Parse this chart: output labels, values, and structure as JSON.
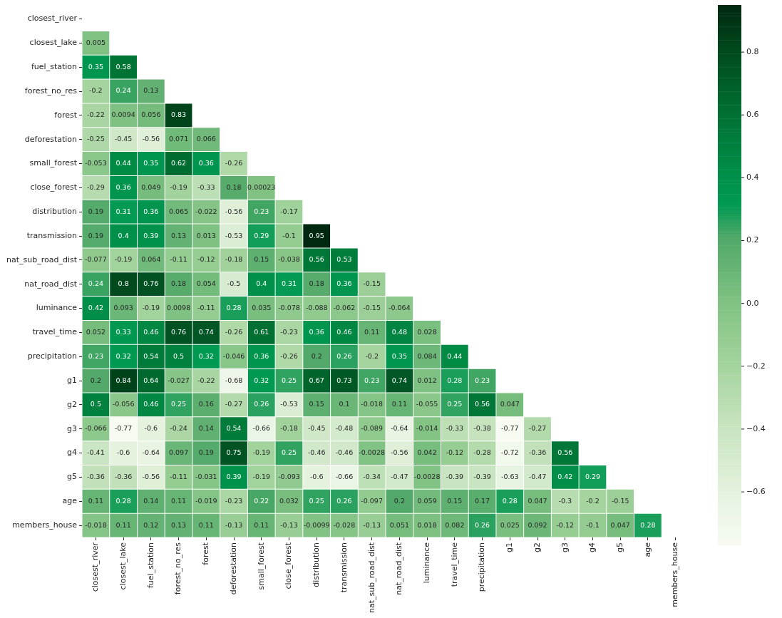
{
  "chart_data": {
    "type": "heatmap",
    "categories": [
      "closest_river",
      "closest_lake",
      "fuel_station",
      "forest_no_res",
      "forest",
      "deforestation",
      "small_forest",
      "close_forest",
      "distribution",
      "transmission",
      "nat_sub_road_dist",
      "nat_road_dist",
      "luminance",
      "travel_time",
      "precipitation",
      "g1",
      "g2",
      "g3",
      "g4",
      "g5",
      "age",
      "members_house"
    ],
    "y_categories": [
      "closest_river",
      "closest_lake",
      "fuel_station",
      "forest_no_res",
      "forest",
      "deforestation",
      "small_forest",
      "close_forest",
      "distribution",
      "transmission",
      "nat_sub_road_dist",
      "nat_road_dist",
      "luminance",
      "travel_time",
      "precipitation",
      "g1",
      "g2",
      "g3",
      "g4",
      "g5",
      "age",
      "members_house"
    ],
    "cells": [
      [
        null,
        null,
        null,
        null,
        null,
        null,
        null,
        null,
        null,
        null,
        null,
        null,
        null,
        null,
        null,
        null,
        null,
        null,
        null,
        null,
        null,
        null
      ],
      [
        0.005,
        null,
        null,
        null,
        null,
        null,
        null,
        null,
        null,
        null,
        null,
        null,
        null,
        null,
        null,
        null,
        null,
        null,
        null,
        null,
        null,
        null
      ],
      [
        0.35,
        0.58,
        null,
        null,
        null,
        null,
        null,
        null,
        null,
        null,
        null,
        null,
        null,
        null,
        null,
        null,
        null,
        null,
        null,
        null,
        null,
        null
      ],
      [
        -0.2,
        0.24,
        0.13,
        null,
        null,
        null,
        null,
        null,
        null,
        null,
        null,
        null,
        null,
        null,
        null,
        null,
        null,
        null,
        null,
        null,
        null,
        null
      ],
      [
        -0.22,
        0.0094,
        0.056,
        0.83,
        null,
        null,
        null,
        null,
        null,
        null,
        null,
        null,
        null,
        null,
        null,
        null,
        null,
        null,
        null,
        null,
        null,
        null
      ],
      [
        -0.25,
        -0.45,
        -0.56,
        0.071,
        0.066,
        null,
        null,
        null,
        null,
        null,
        null,
        null,
        null,
        null,
        null,
        null,
        null,
        null,
        null,
        null,
        null,
        null
      ],
      [
        -0.053,
        0.44,
        0.35,
        0.62,
        0.36,
        -0.26,
        null,
        null,
        null,
        null,
        null,
        null,
        null,
        null,
        null,
        null,
        null,
        null,
        null,
        null,
        null,
        null
      ],
      [
        -0.29,
        0.36,
        0.049,
        -0.19,
        -0.33,
        0.18,
        0.00023,
        null,
        null,
        null,
        null,
        null,
        null,
        null,
        null,
        null,
        null,
        null,
        null,
        null,
        null,
        null
      ],
      [
        0.19,
        0.31,
        0.36,
        0.065,
        -0.022,
        -0.56,
        0.23,
        -0.17,
        null,
        null,
        null,
        null,
        null,
        null,
        null,
        null,
        null,
        null,
        null,
        null,
        null,
        null
      ],
      [
        0.19,
        0.4,
        0.39,
        0.13,
        0.013,
        -0.53,
        0.29,
        -0.1,
        0.95,
        null,
        null,
        null,
        null,
        null,
        null,
        null,
        null,
        null,
        null,
        null,
        null,
        null
      ],
      [
        -0.077,
        -0.19,
        0.064,
        -0.11,
        -0.12,
        -0.18,
        0.15,
        -0.038,
        0.56,
        0.53,
        null,
        null,
        null,
        null,
        null,
        null,
        null,
        null,
        null,
        null,
        null,
        null
      ],
      [
        0.24,
        0.8,
        0.76,
        0.18,
        0.054,
        -0.5,
        0.4,
        0.31,
        0.18,
        0.36,
        -0.15,
        null,
        null,
        null,
        null,
        null,
        null,
        null,
        null,
        null,
        null,
        null
      ],
      [
        0.42,
        0.093,
        -0.19,
        0.0098,
        -0.11,
        0.28,
        0.035,
        -0.078,
        -0.088,
        -0.062,
        -0.15,
        -0.064,
        null,
        null,
        null,
        null,
        null,
        null,
        null,
        null,
        null,
        null
      ],
      [
        0.052,
        0.33,
        0.46,
        0.76,
        0.74,
        -0.26,
        0.61,
        -0.23,
        0.36,
        0.46,
        0.11,
        0.48,
        0.028,
        null,
        null,
        null,
        null,
        null,
        null,
        null,
        null,
        null
      ],
      [
        0.23,
        0.32,
        0.54,
        0.5,
        0.32,
        -0.046,
        0.36,
        -0.26,
        0.2,
        0.26,
        -0.2,
        0.35,
        0.084,
        0.44,
        null,
        null,
        null,
        null,
        null,
        null,
        null,
        null
      ],
      [
        0.2,
        0.84,
        0.64,
        -0.027,
        -0.22,
        -0.68,
        0.32,
        0.25,
        0.67,
        0.73,
        0.23,
        0.74,
        0.012,
        0.28,
        0.23,
        null,
        null,
        null,
        null,
        null,
        null,
        null
      ],
      [
        0.5,
        -0.056,
        0.46,
        0.25,
        0.16,
        -0.27,
        0.26,
        -0.53,
        0.15,
        0.1,
        -0.018,
        0.11,
        -0.055,
        0.25,
        0.56,
        0.047,
        null,
        null,
        null,
        null,
        null,
        null
      ],
      [
        -0.066,
        -0.77,
        -0.6,
        -0.24,
        0.14,
        0.54,
        -0.66,
        -0.18,
        -0.45,
        -0.48,
        -0.089,
        -0.64,
        -0.014,
        -0.33,
        -0.38,
        -0.77,
        -0.27,
        null,
        null,
        null,
        null,
        null
      ],
      [
        -0.41,
        -0.6,
        -0.64,
        0.097,
        0.19,
        0.75,
        -0.19,
        0.25,
        -0.46,
        -0.46,
        -0.0028,
        -0.56,
        0.042,
        -0.12,
        -0.28,
        -0.72,
        -0.36,
        0.56,
        null,
        null,
        null,
        null
      ],
      [
        -0.36,
        -0.36,
        -0.56,
        -0.11,
        -0.031,
        0.39,
        -0.19,
        -0.093,
        -0.6,
        -0.66,
        -0.34,
        -0.47,
        -0.0028,
        -0.39,
        -0.39,
        -0.63,
        -0.47,
        0.42,
        0.29,
        null,
        null,
        null
      ],
      [
        0.11,
        0.28,
        0.14,
        0.11,
        -0.019,
        -0.23,
        0.22,
        0.032,
        0.25,
        0.26,
        -0.097,
        0.2,
        0.059,
        0.15,
        0.17,
        0.28,
        0.047,
        -0.3,
        -0.2,
        -0.15,
        null,
        null
      ],
      [
        -0.018,
        0.11,
        0.12,
        0.13,
        0.11,
        -0.13,
        0.11,
        -0.13,
        -0.0099,
        -0.028,
        -0.13,
        0.051,
        0.018,
        0.082,
        0.26,
        0.025,
        0.092,
        -0.12,
        -0.1,
        0.047,
        0.28,
        null
      ]
    ],
    "clim": [
      -0.77,
      0.95
    ],
    "cticks": [
      {
        "value": -0.6,
        "label": "−0.6"
      },
      {
        "value": -0.4,
        "label": "−0.4"
      },
      {
        "value": -0.2,
        "label": "−0.2"
      },
      {
        "value": 0,
        "label": "0.0"
      },
      0.2,
      0.4,
      0.6,
      0.8
    ],
    "data_labels": true
  }
}
